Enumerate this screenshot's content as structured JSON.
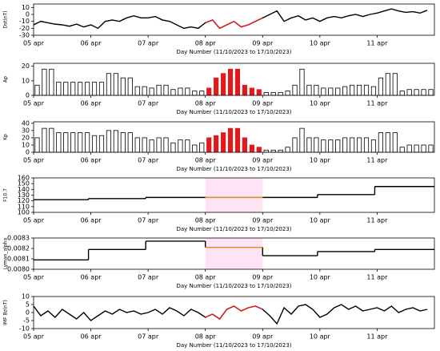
{
  "chart_data": [
    {
      "type": "line",
      "ylabel": "Dst(nT)",
      "xlabel": "Day Number (11/10/2023 to 17/10/2023)",
      "color": "#000000",
      "highlight": {
        "xlim": [
          72,
          96
        ],
        "color": "#e31a1c"
      },
      "xlim": [
        0,
        168
      ],
      "ylim": [
        -30,
        15
      ],
      "yticks": [
        10,
        0,
        -10,
        -20,
        -30
      ],
      "xticks": [
        {
          "value": 0,
          "label": "05 apr"
        },
        {
          "value": 24,
          "label": "06 apr"
        },
        {
          "value": 48,
          "label": "07 apr"
        },
        {
          "value": 72,
          "label": "08 apr"
        },
        {
          "value": 96,
          "label": "09 apr"
        },
        {
          "value": 120,
          "label": "10 apr"
        },
        {
          "value": 144,
          "label": "11 apr"
        }
      ],
      "x": [
        0,
        3,
        6,
        9,
        12,
        15,
        18,
        21,
        24,
        27,
        30,
        33,
        36,
        39,
        42,
        45,
        48,
        51,
        54,
        57,
        60,
        63,
        66,
        69,
        72,
        75,
        78,
        81,
        84,
        87,
        90,
        93,
        96,
        99,
        102,
        105,
        108,
        111,
        114,
        117,
        120,
        123,
        126,
        129,
        132,
        135,
        138,
        141,
        144,
        147,
        150,
        153,
        156,
        159,
        162,
        165
      ],
      "values": [
        -15,
        -10,
        -12,
        -14,
        -15,
        -17,
        -14,
        -18,
        -15,
        -20,
        -10,
        -8,
        -10,
        -5,
        -2,
        -5,
        -5,
        -3,
        -8,
        -10,
        -15,
        -20,
        -18,
        -20,
        -12,
        -8,
        -20,
        -15,
        -10,
        -18,
        -15,
        -10,
        -5,
        0,
        5,
        -10,
        -5,
        -2,
        -8,
        -5,
        -10,
        -5,
        -3,
        -5,
        -2,
        0,
        -3,
        0,
        2,
        5,
        8,
        5,
        3,
        4,
        2,
        6
      ]
    },
    {
      "type": "bar",
      "ylabel": "Ap",
      "xlabel": "Day Number (11/10/2023 to 17/10/2023)",
      "color": "#000000",
      "highlight": {
        "xlim": [
          72,
          96
        ],
        "color": "#e31a1c"
      },
      "xlim": [
        0,
        168
      ],
      "ylim": [
        0,
        22
      ],
      "yticks": [
        0,
        10,
        20
      ],
      "xticks": [
        {
          "value": 0,
          "label": "05 apr"
        },
        {
          "value": 24,
          "label": "06 apr"
        },
        {
          "value": 48,
          "label": "07 apr"
        },
        {
          "value": 72,
          "label": "08 apr"
        },
        {
          "value": 96,
          "label": "09 apr"
        },
        {
          "value": 120,
          "label": "10 apr"
        },
        {
          "value": 144,
          "label": "11 apr"
        }
      ],
      "x": [
        0,
        3,
        6,
        9,
        12,
        15,
        18,
        21,
        24,
        27,
        30,
        33,
        36,
        39,
        42,
        45,
        48,
        51,
        54,
        57,
        60,
        63,
        66,
        69,
        72,
        75,
        78,
        81,
        84,
        87,
        90,
        93,
        96,
        99,
        102,
        105,
        108,
        111,
        114,
        117,
        120,
        123,
        126,
        129,
        132,
        135,
        138,
        141,
        144,
        147,
        150,
        153,
        156,
        159,
        162,
        165
      ],
      "values": [
        7,
        18,
        18,
        9,
        9,
        9,
        9,
        9,
        9,
        9,
        15,
        15,
        12,
        12,
        6,
        6,
        5,
        7,
        7,
        4,
        5,
        5,
        3,
        3,
        5,
        12,
        15,
        18,
        18,
        7,
        5,
        4,
        2,
        2,
        2,
        3,
        7,
        18,
        7,
        7,
        5,
        5,
        5,
        6,
        7,
        7,
        7,
        6,
        12,
        15,
        15,
        3,
        4,
        4,
        4,
        4
      ]
    },
    {
      "type": "bar",
      "ylabel": "Kp",
      "xlabel": "Day Number (11/10/2023 to 17/10/2023)",
      "color": "#000000",
      "highlight": {
        "xlim": [
          72,
          96
        ],
        "color": "#e31a1c"
      },
      "xlim": [
        0,
        168
      ],
      "ylim": [
        0,
        42
      ],
      "yticks": [
        0,
        10,
        20,
        30,
        40
      ],
      "xticks": [
        {
          "value": 0,
          "label": "05 apr"
        },
        {
          "value": 24,
          "label": "06 apr"
        },
        {
          "value": 48,
          "label": "07 apr"
        },
        {
          "value": 72,
          "label": "08 apr"
        },
        {
          "value": 96,
          "label": "09 apr"
        },
        {
          "value": 120,
          "label": "10 apr"
        },
        {
          "value": 144,
          "label": "11 apr"
        }
      ],
      "x": [
        0,
        3,
        6,
        9,
        12,
        15,
        18,
        21,
        24,
        27,
        30,
        33,
        36,
        39,
        42,
        45,
        48,
        51,
        54,
        57,
        60,
        63,
        66,
        69,
        72,
        75,
        78,
        81,
        84,
        87,
        90,
        93,
        96,
        99,
        102,
        105,
        108,
        111,
        114,
        117,
        120,
        123,
        126,
        129,
        132,
        135,
        138,
        141,
        144,
        147,
        150,
        153,
        156,
        159,
        162,
        165
      ],
      "values": [
        20,
        33,
        33,
        27,
        27,
        27,
        27,
        27,
        23,
        23,
        30,
        30,
        27,
        27,
        20,
        20,
        17,
        20,
        20,
        13,
        17,
        17,
        10,
        13,
        20,
        23,
        27,
        33,
        33,
        20,
        10,
        7,
        3,
        3,
        3,
        7,
        20,
        33,
        20,
        20,
        17,
        17,
        17,
        20,
        20,
        20,
        20,
        17,
        27,
        27,
        27,
        7,
        10,
        10,
        10,
        10
      ]
    },
    {
      "type": "step",
      "ylabel": "F10.7",
      "xlabel": "Day Number (11/10/2023 to 17/10/2023)",
      "color": "#000000",
      "highlight": {
        "xlim": [
          72,
          96
        ],
        "color": "#d98c1a",
        "band_color": "#fde3f3"
      },
      "xlim": [
        0,
        168
      ],
      "ylim": [
        100,
        160
      ],
      "yticks": [
        100,
        110,
        120,
        130,
        140,
        150,
        160
      ],
      "xticks": [
        {
          "value": 0,
          "label": "05 apr"
        },
        {
          "value": 24,
          "label": "06 apr"
        },
        {
          "value": 48,
          "label": "07 apr"
        },
        {
          "value": 72,
          "label": "08 apr"
        },
        {
          "value": 96,
          "label": "09 apr"
        },
        {
          "value": 120,
          "label": "10 apr"
        },
        {
          "value": 144,
          "label": "11 apr"
        }
      ],
      "x": [
        0,
        23,
        47,
        72,
        96,
        119,
        143
      ],
      "values": [
        122,
        124,
        126,
        126,
        126,
        131,
        145
      ]
    },
    {
      "type": "step",
      "ylabel": "Lyman_alpha",
      "xlabel": "Day Number (11/10/2023 to 17/10/2023)",
      "color": "#000000",
      "highlight": {
        "xlim": [
          72,
          96
        ],
        "color": "#d98c1a",
        "band_color": "#fde3f3"
      },
      "xlim": [
        0,
        168
      ],
      "ylim": [
        0.008,
        0.0083
      ],
      "yticks": [
        {
          "value": 0.008,
          "label": "0.0080"
        },
        0.0081,
        0.0082,
        0.0083
      ],
      "xticks": [
        {
          "value": 0,
          "label": "05 apr"
        },
        {
          "value": 24,
          "label": "06 apr"
        },
        {
          "value": 48,
          "label": "07 apr"
        },
        {
          "value": 72,
          "label": "08 apr"
        },
        {
          "value": 96,
          "label": "09 apr"
        },
        {
          "value": 120,
          "label": "10 apr"
        },
        {
          "value": 144,
          "label": "11 apr"
        }
      ],
      "x": [
        0,
        23,
        47,
        72,
        96,
        119,
        143
      ],
      "values": [
        0.00809,
        0.00819,
        0.00827,
        0.00821,
        0.00813,
        0.00817,
        0.00819
      ]
    },
    {
      "type": "line",
      "ylabel": "IMF Bz(nT)",
      "xlabel": "Day Number (11/10/2023 to 17/10/2023)",
      "color": "#000000",
      "highlight": {
        "xlim": [
          72,
          96
        ],
        "color": "#e31a1c"
      },
      "xlim": [
        0,
        168
      ],
      "ylim": [
        -10,
        10
      ],
      "yticks": [
        10,
        5,
        0,
        -5,
        -10
      ],
      "xticks": [
        {
          "value": 0,
          "label": "05 apr"
        },
        {
          "value": 24,
          "label": "06 apr"
        },
        {
          "value": 48,
          "label": "07 apr"
        },
        {
          "value": 72,
          "label": "08 apr"
        },
        {
          "value": 96,
          "label": "09 apr"
        },
        {
          "value": 120,
          "label": "10 apr"
        },
        {
          "value": 144,
          "label": "11 apr"
        }
      ],
      "x": [
        0,
        3,
        6,
        9,
        12,
        15,
        18,
        21,
        24,
        27,
        30,
        33,
        36,
        39,
        42,
        45,
        48,
        51,
        54,
        57,
        60,
        63,
        66,
        69,
        72,
        75,
        78,
        81,
        84,
        87,
        90,
        93,
        96,
        99,
        102,
        105,
        108,
        111,
        114,
        117,
        120,
        123,
        126,
        129,
        132,
        135,
        138,
        141,
        144,
        147,
        150,
        153,
        156,
        159,
        162,
        165
      ],
      "values": [
        4,
        -2,
        1,
        -3,
        2,
        -1,
        -4,
        0,
        -5,
        -2,
        1,
        -1,
        2,
        0,
        1,
        -1,
        0,
        2,
        -1,
        3,
        1,
        -2,
        2,
        0,
        -3,
        -1,
        -4,
        2,
        4,
        1,
        3,
        4,
        2,
        -2,
        -7,
        3,
        -1,
        4,
        5,
        2,
        -3,
        -1,
        3,
        5,
        2,
        4,
        1,
        2,
        3,
        1,
        4,
        0,
        2,
        3,
        1,
        2
      ]
    }
  ]
}
